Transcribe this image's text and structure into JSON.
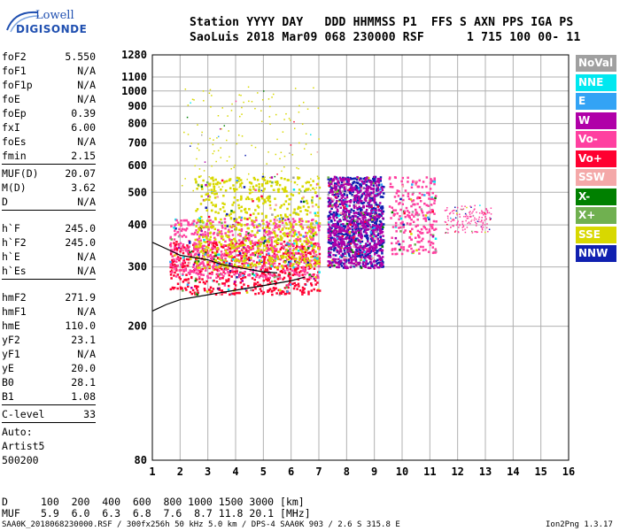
{
  "logo": {
    "line1": "Lowell",
    "line2": "DIGISONDE"
  },
  "header": {
    "line1": "Station YYYY DAY   DDD HHMMSS P1  FFS S AXN PPS IGA PS",
    "line2": "SaoLuis 2018 Mar09 068 230000 RSF      1 715 100 00- 11"
  },
  "params": {
    "group1": [
      {
        "name": "foF2",
        "value": "5.550"
      },
      {
        "name": "foF1",
        "value": "N/A"
      },
      {
        "name": "foF1p",
        "value": "N/A"
      },
      {
        "name": "foE",
        "value": "N/A"
      },
      {
        "name": "foEp",
        "value": "0.39"
      },
      {
        "name": "fxI",
        "value": "6.00"
      },
      {
        "name": "foEs",
        "value": "N/A"
      },
      {
        "name": "fmin",
        "value": "2.15"
      }
    ],
    "group2": [
      {
        "name": "MUF(D)",
        "value": "20.07"
      },
      {
        "name": "M(D)",
        "value": "3.62"
      },
      {
        "name": "D",
        "value": "N/A"
      }
    ],
    "group3": [
      {
        "name": "h`F",
        "value": "245.0"
      },
      {
        "name": "h`F2",
        "value": "245.0"
      },
      {
        "name": "h`E",
        "value": "N/A"
      },
      {
        "name": "h`Es",
        "value": "N/A"
      }
    ],
    "group4": [
      {
        "name": "hmF2",
        "value": "271.9"
      },
      {
        "name": "hmF1",
        "value": "N/A"
      },
      {
        "name": "hmE",
        "value": "110.0"
      },
      {
        "name": "yF2",
        "value": "23.1"
      },
      {
        "name": "yF1",
        "value": "N/A"
      },
      {
        "name": "yE",
        "value": "20.0"
      },
      {
        "name": "B0",
        "value": "28.1"
      },
      {
        "name": "B1",
        "value": "1.08"
      }
    ],
    "clevel": {
      "name": "C-level",
      "value": "33"
    },
    "auto": [
      "Auto:",
      "Artist5",
      "500200"
    ]
  },
  "legend": [
    {
      "label": "NoVal",
      "color": "#a0a0a0"
    },
    {
      "label": "NNE",
      "color": "#00e8f0"
    },
    {
      "label": "E",
      "color": "#33a3f5"
    },
    {
      "label": "W",
      "color": "#b000a8"
    },
    {
      "label": "Vo-",
      "color": "#ff40a0"
    },
    {
      "label": "Vo+",
      "color": "#ff0030"
    },
    {
      "label": "SSW",
      "color": "#f4a8a8"
    },
    {
      "label": "X-",
      "color": "#008000"
    },
    {
      "label": "X+",
      "color": "#70b050"
    },
    {
      "label": "SSE",
      "color": "#d8d800"
    },
    {
      "label": "NNW",
      "color": "#1020b0"
    }
  ],
  "chart_data": {
    "type": "scatter",
    "title": "",
    "xlabel": "",
    "ylabel": "",
    "xlim": [
      1,
      16
    ],
    "x_ticks": [
      1,
      2,
      3,
      4,
      5,
      6,
      7,
      8,
      9,
      10,
      11,
      12,
      13,
      14,
      15,
      16
    ],
    "ylim": [
      80,
      1280
    ],
    "y_scale": "log",
    "y_ticks": [
      80,
      200,
      300,
      400,
      500,
      600,
      700,
      800,
      900,
      1000,
      1100,
      1280
    ],
    "grid": true,
    "legend_position": "right",
    "trace_lines": [
      {
        "x": [
          1.0,
          1.5,
          2.0,
          3.0,
          4.0,
          5.0,
          6.0,
          6.5
        ],
        "y": [
          222,
          232,
          240,
          248,
          256,
          264,
          273,
          280
        ]
      },
      {
        "x": [
          1.0,
          1.5,
          2.0,
          2.5,
          3.0,
          3.5,
          4.0,
          4.5,
          5.0,
          5.5
        ],
        "y": [
          355,
          340,
          325,
          320,
          315,
          305,
          300,
          295,
          290,
          288
        ]
      }
    ],
    "clusters": [
      {
        "x_range": [
          1.6,
          7.0
        ],
        "y_range": [
          250,
          360
        ],
        "color": "#ff0030",
        "density": "high"
      },
      {
        "x_range": [
          1.6,
          7.0
        ],
        "y_range": [
          280,
          420
        ],
        "color": "#ff40a0",
        "density": "high"
      },
      {
        "x_range": [
          2.5,
          7.0
        ],
        "y_range": [
          300,
          560
        ],
        "color": "#d8d800",
        "density": "high"
      },
      {
        "x_range": [
          2.0,
          7.0
        ],
        "y_range": [
          500,
          1050
        ],
        "color": "#d8d800",
        "density": "low"
      },
      {
        "x_range": [
          7.3,
          9.3
        ],
        "y_range": [
          300,
          560
        ],
        "color": "#1020b0",
        "density": "high"
      },
      {
        "x_range": [
          7.3,
          9.3
        ],
        "y_range": [
          300,
          560
        ],
        "color": "#b000a8",
        "density": "high"
      },
      {
        "x_range": [
          9.5,
          11.2
        ],
        "y_range": [
          330,
          560
        ],
        "color": "#ff40a0",
        "density": "medium"
      },
      {
        "x_range": [
          11.5,
          13.2
        ],
        "y_range": [
          380,
          460
        ],
        "color": "#ff40a0",
        "density": "low"
      }
    ]
  },
  "bottom": {
    "d_label": "D",
    "d_values": "100  200  400  600  800 1000 1500 3000 [km]",
    "muf_label": "MUF",
    "muf_values": "5.9  6.0  6.3  6.8  7.6  8.7 11.8 20.1 [MHz]"
  },
  "footer": {
    "left": "SAA0K_2018068230000.RSF / 300fx256h 50 kHz 5.0 km / DPS-4 SAA0K 903 / 2.6 S 315.8 E",
    "right": "Ion2Png 1.3.17"
  }
}
